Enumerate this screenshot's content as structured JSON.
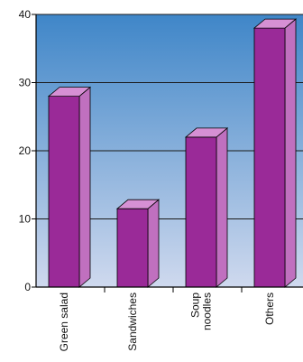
{
  "chart_data": {
    "type": "bar",
    "categories": [
      "Green salad",
      "Sandwiches",
      "Soup noodles",
      "Others"
    ],
    "category_label_lines": [
      [
        "Green salad"
      ],
      [
        "Sandwiches"
      ],
      [
        "Soup",
        "noodles"
      ],
      [
        "Others"
      ]
    ],
    "values": [
      28,
      11.5,
      22,
      38
    ],
    "title": "",
    "xlabel": "",
    "ylabel": "",
    "ylim": [
      0,
      40
    ],
    "yticks": [
      0,
      10,
      20,
      30,
      40
    ],
    "grid": true,
    "bar_style": "3d",
    "colors": {
      "bar_front": "#9a2a98",
      "bar_top": "#d690d4",
      "bar_side": "#c070bf",
      "plot_top": "#3f86c8",
      "plot_bottom": "#cfd9ee",
      "grid": "#1a1a1a",
      "axis": "#000000"
    }
  }
}
